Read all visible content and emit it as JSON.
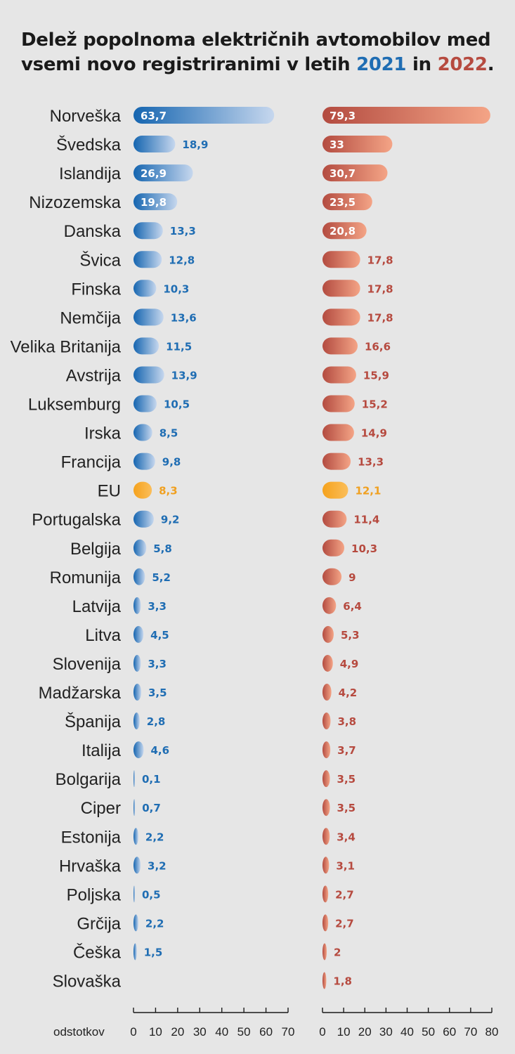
{
  "title": {
    "line1": "Delež popolnoma električnih avtomobilov med",
    "line2_pre": "vsemi novo registriranimi v letih ",
    "year_a": "2021",
    "mid": " in ",
    "year_b": "2022",
    "end": "."
  },
  "unit_label": "odstotkov",
  "colors": {
    "blue_dark": "#1565b0",
    "blue_light": "#c6d7ee",
    "red_dark": "#b34b40",
    "red_light": "#f4a486",
    "eu_dark": "#f5a21d",
    "eu_light": "#fbbe5a",
    "label_blue": "#1f6db3",
    "label_red": "#b64a3f",
    "label_eu": "#f0a020",
    "year_2021": "#1f6db3",
    "year_2022": "#b64a3f"
  },
  "chart_data": {
    "type": "bar",
    "orientation": "horizontal",
    "categories": [
      "Norveška",
      "Švedska",
      "Islandija",
      "Nizozemska",
      "Danska",
      "Švica",
      "Finska",
      "Nemčija",
      "Velika Britanija",
      "Avstrija",
      "Luksemburg",
      "Irska",
      "Francija",
      "EU",
      "Portugalska",
      "Belgija",
      "Romunija",
      "Latvija",
      "Litva",
      "Slovenija",
      "Madžarska",
      "Španija",
      "Italija",
      "Bolgarija",
      "Ciper",
      "Estonija",
      "Hrvaška",
      "Poljska",
      "Grčija",
      "Češka",
      "Slovaška"
    ],
    "highlight_category": "EU",
    "series": [
      {
        "name": "2021",
        "values": [
          63.7,
          18.9,
          26.9,
          19.8,
          13.3,
          12.8,
          10.3,
          13.6,
          11.5,
          13.9,
          10.5,
          8.5,
          9.8,
          8.3,
          9.2,
          5.8,
          5.2,
          3.3,
          4.5,
          3.3,
          3.5,
          2.8,
          4.6,
          0.1,
          0.7,
          2.2,
          3.2,
          0.5,
          2.2,
          1.5,
          null
        ],
        "labels": [
          "63,7",
          "18,9",
          "26,9",
          "19,8",
          "13,3",
          "12,8",
          "10,3",
          "13,6",
          "11,5",
          "13,9",
          "10,5",
          "8,5",
          "9,8",
          "8,3",
          "9,2",
          "5,8",
          "5,2",
          "3,3",
          "4,5",
          "3,3",
          "3,5",
          "2,8",
          "4,6",
          "0,1",
          "0,7",
          "2,2",
          "3,2",
          "0,5",
          "2,2",
          "1,5",
          ""
        ],
        "xlim": [
          0,
          70
        ],
        "ticks": [
          "0",
          "10",
          "20",
          "30",
          "40",
          "50",
          "60",
          "70"
        ]
      },
      {
        "name": "2022",
        "values": [
          79.3,
          33,
          30.7,
          23.5,
          20.8,
          17.8,
          17.8,
          17.8,
          16.6,
          15.9,
          15.2,
          14.9,
          13.3,
          12.1,
          11.4,
          10.3,
          9,
          6.4,
          5.3,
          4.9,
          4.2,
          3.8,
          3.7,
          3.5,
          3.5,
          3.4,
          3.1,
          2.7,
          2.7,
          2,
          1.8
        ],
        "labels": [
          "79,3",
          "33",
          "30,7",
          "23,5",
          "20,8",
          "17,8",
          "17,8",
          "17,8",
          "16,6",
          "15,9",
          "15,2",
          "14,9",
          "13,3",
          "12,1",
          "11,4",
          "10,3",
          "9",
          "6,4",
          "5,3",
          "4,9",
          "4,2",
          "3,8",
          "3,7",
          "3,5",
          "3,5",
          "3,4",
          "3,1",
          "2,7",
          "2,7",
          "2",
          "1,8"
        ],
        "xlim": [
          0,
          80
        ],
        "ticks": [
          "0",
          "10",
          "20",
          "30",
          "40",
          "50",
          "60",
          "70",
          "80"
        ]
      }
    ]
  }
}
